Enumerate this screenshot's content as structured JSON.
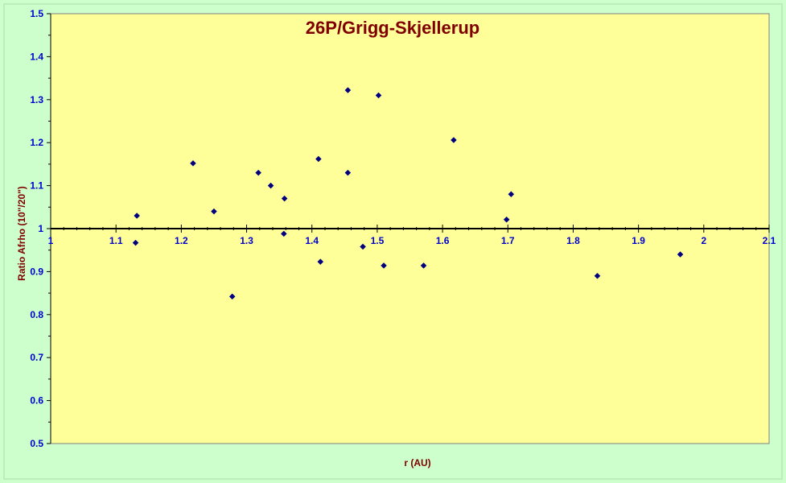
{
  "chart_data": {
    "type": "scatter",
    "title": "26P/Grigg-Skjellerup",
    "xlabel": "r (AU)",
    "ylabel": "Ratio Afrho  (10\"/20\")",
    "xlim": [
      1.0,
      2.1
    ],
    "ylim": [
      0.5,
      1.5
    ],
    "x_ticks": [
      "1",
      "1.1",
      "1.2",
      "1.3",
      "1.4",
      "1.5",
      "1.6",
      "1.7",
      "1.8",
      "1.9",
      "2",
      "2.1"
    ],
    "y_ticks": [
      "0.5",
      "0.6",
      "0.7",
      "0.8",
      "0.9",
      "1",
      "1.1",
      "1.2",
      "1.3",
      "1.4",
      "1.5"
    ],
    "x_axis_crosses_at_y": 1.0,
    "grid": false,
    "colors": {
      "background": "#ccffcc",
      "plot_area": "#ffff99",
      "marker": "#000080",
      "title": "#800000",
      "tick_labels": "#0000cc"
    },
    "points": [
      {
        "x": 1.132,
        "y": 1.03
      },
      {
        "x": 1.13,
        "y": 0.967
      },
      {
        "x": 1.218,
        "y": 1.152
      },
      {
        "x": 1.25,
        "y": 1.04
      },
      {
        "x": 1.278,
        "y": 0.842
      },
      {
        "x": 1.318,
        "y": 1.13
      },
      {
        "x": 1.337,
        "y": 1.1
      },
      {
        "x": 1.358,
        "y": 1.07
      },
      {
        "x": 1.357,
        "y": 0.988
      },
      {
        "x": 1.41,
        "y": 1.162
      },
      {
        "x": 1.413,
        "y": 0.923
      },
      {
        "x": 1.455,
        "y": 1.322
      },
      {
        "x": 1.455,
        "y": 1.13
      },
      {
        "x": 1.478,
        "y": 0.958
      },
      {
        "x": 1.502,
        "y": 1.31
      },
      {
        "x": 1.51,
        "y": 0.914
      },
      {
        "x": 1.571,
        "y": 0.914
      },
      {
        "x": 1.617,
        "y": 1.206
      },
      {
        "x": 1.698,
        "y": 1.021
      },
      {
        "x": 1.705,
        "y": 1.08
      },
      {
        "x": 1.837,
        "y": 0.89
      },
      {
        "x": 1.964,
        "y": 0.94
      }
    ]
  }
}
